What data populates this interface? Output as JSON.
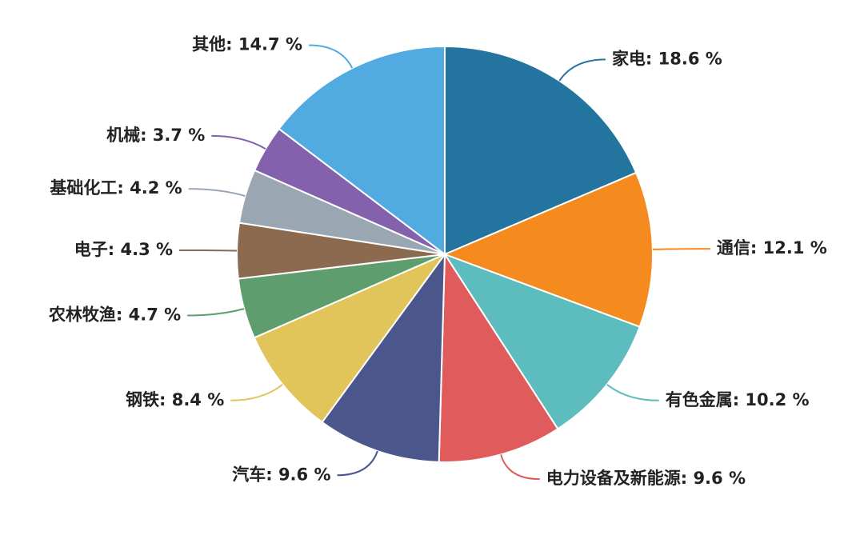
{
  "chart_data": {
    "type": "pie",
    "values": [
      18.6,
      12.1,
      10.2,
      9.6,
      9.6,
      8.4,
      4.7,
      4.3,
      4.2,
      3.7,
      14.7
    ],
    "value_labels": [
      "家电: 18.6 %",
      "通信: 12.1 %",
      "有色金属: 10.2 %",
      "电力设备及新能源: 9.6 %",
      "汽车: 9.6 %",
      "钢铁: 8.4 %",
      "农林牧渔: 4.7 %",
      "电子: 4.3 %",
      "基础化工: 4.2 %",
      "机械: 3.7 %",
      "其他: 14.7 %"
    ],
    "colors": [
      "#2474a0",
      "#f58a1f",
      "#5dbdbe",
      "#e05c5c",
      "#4a568c",
      "#e2c55a",
      "#5e9e6e",
      "#8b6a50",
      "#9aa7b2",
      "#8461ad",
      "#52abe0"
    ]
  }
}
